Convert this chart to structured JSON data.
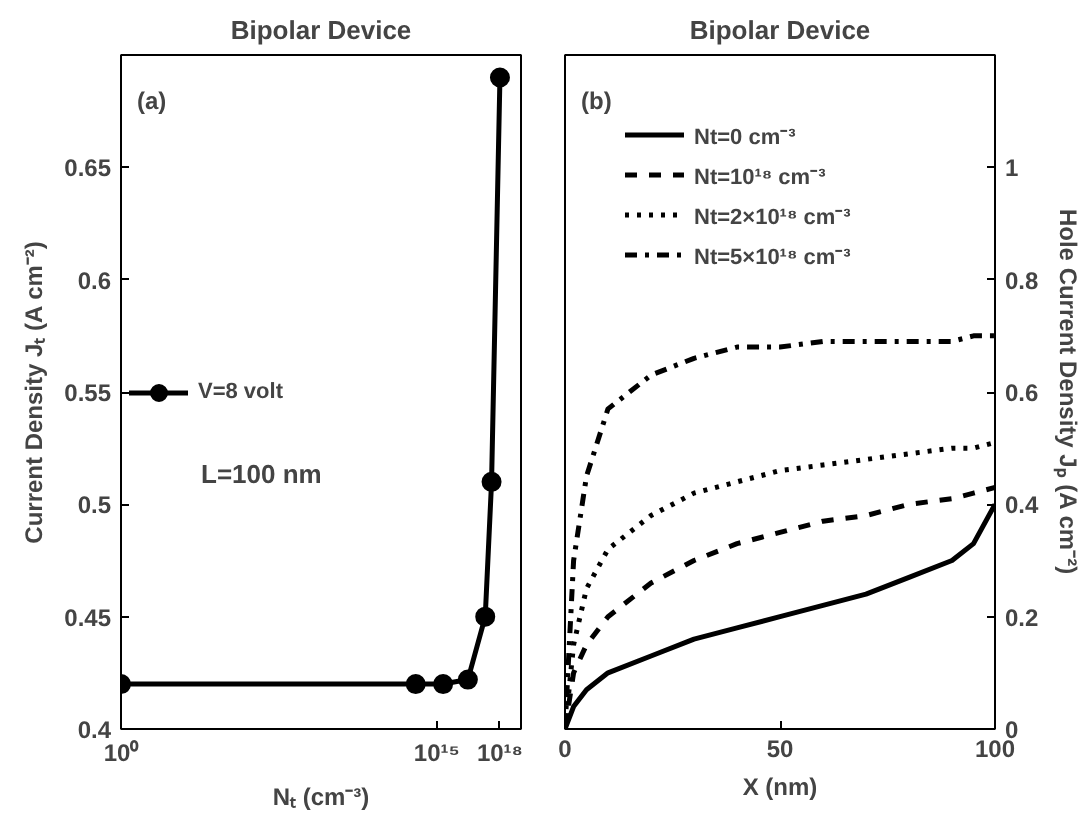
{
  "chart_data": [
    {
      "type": "line",
      "title": "Bipolar Device",
      "xlabel": "Nₜ (cm⁻³)",
      "ylabel": "Current Density Jₜ (A cm⁻²)",
      "annotations": [
        "(a)",
        "L=100 nm"
      ],
      "log": "x",
      "xlim": [
        1,
        1e+19
      ],
      "xticks": [
        {
          "value": 1,
          "label": "10⁰"
        },
        {
          "value": 1000000000000000.0,
          "label": "10¹⁵"
        },
        {
          "value": 1e+18,
          "label": "10¹⁸"
        }
      ],
      "ylim": [
        0.4,
        0.7
      ],
      "yticks": [
        0.4,
        0.45,
        0.5,
        0.55,
        0.6,
        0.65
      ],
      "grid": false,
      "legend": "left",
      "marker": "circle",
      "line_style": "solid",
      "series": [
        {
          "name": "V=8 volt",
          "color": "#000000",
          "x": [
            1,
            100000000000000.0,
            2000000000000000.0,
            3e+16,
            2e+17,
            4e+17,
            1e+18
          ],
          "values": [
            0.42,
            0.42,
            0.42,
            0.422,
            0.45,
            0.51,
            0.69
          ]
        }
      ]
    },
    {
      "type": "line",
      "title": "Bipolar Device",
      "xlabel": "X (nm)",
      "y2label": "Hole Current Density Jₚ (A cm⁻²)",
      "annotations": [
        "(b)"
      ],
      "x": [
        0,
        2,
        5,
        10,
        20,
        30,
        40,
        50,
        60,
        70,
        80,
        90,
        95,
        100
      ],
      "xlim": [
        0,
        100
      ],
      "xticks": [
        0,
        50,
        100
      ],
      "ylim": [
        0,
        1.2
      ],
      "yticks": [
        0,
        0.2,
        0.4,
        0.6,
        0.8,
        1
      ],
      "grid": false,
      "legend": "top left",
      "marker": "none",
      "series": [
        {
          "name": "Nt=0 cm⁻³",
          "color": "#000000",
          "line_style": "solid",
          "values": [
            0.0,
            0.04,
            0.07,
            0.1,
            0.13,
            0.16,
            0.18,
            0.2,
            0.22,
            0.24,
            0.27,
            0.3,
            0.33,
            0.4
          ]
        },
        {
          "name": "Nt=10¹⁸ cm⁻³",
          "color": "#000000",
          "line_style": "dashed",
          "values": [
            0.0,
            0.1,
            0.15,
            0.2,
            0.26,
            0.3,
            0.33,
            0.35,
            0.37,
            0.38,
            0.4,
            0.41,
            0.42,
            0.43
          ]
        },
        {
          "name": "Nt=2×10¹⁸ cm⁻³",
          "color": "#000000",
          "line_style": "dotted",
          "values": [
            0.0,
            0.15,
            0.25,
            0.32,
            0.38,
            0.42,
            0.44,
            0.46,
            0.47,
            0.48,
            0.49,
            0.5,
            0.5,
            0.51
          ]
        },
        {
          "name": "Nt=5×10¹⁸ cm⁻³",
          "color": "#000000",
          "line_style": "dashdot",
          "values": [
            0.0,
            0.3,
            0.45,
            0.57,
            0.63,
            0.66,
            0.68,
            0.68,
            0.69,
            0.69,
            0.69,
            0.69,
            0.7,
            0.7
          ]
        }
      ]
    }
  ]
}
